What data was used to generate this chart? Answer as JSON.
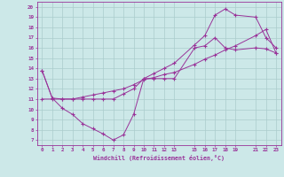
{
  "xlabel": "Windchill (Refroidissement éolien,°C)",
  "bg_color": "#cce8e8",
  "grid_color": "#aacccc",
  "line_color": "#993399",
  "xlim": [
    -0.5,
    23.5
  ],
  "ylim": [
    6.5,
    20.5
  ],
  "xticks": [
    0,
    1,
    2,
    3,
    4,
    5,
    6,
    7,
    8,
    9,
    10,
    11,
    12,
    13,
    15,
    16,
    17,
    18,
    19,
    21,
    22,
    23
  ],
  "yticks": [
    7,
    8,
    9,
    10,
    11,
    12,
    13,
    14,
    15,
    16,
    17,
    18,
    19,
    20
  ],
  "line1_x": [
    0,
    1,
    2,
    3,
    4,
    5,
    6,
    7,
    8,
    9,
    10,
    11,
    12,
    13,
    15,
    16,
    17,
    18,
    19,
    21,
    22,
    23
  ],
  "line1_y": [
    13.8,
    11.1,
    10.1,
    9.5,
    8.6,
    8.1,
    7.6,
    7.0,
    7.5,
    9.5,
    13.0,
    13.0,
    13.0,
    13.0,
    16.0,
    16.2,
    17.0,
    16.0,
    15.8,
    16.0,
    15.9,
    15.5
  ],
  "line2_x": [
    0,
    1,
    2,
    3,
    4,
    5,
    6,
    7,
    8,
    9,
    10,
    11,
    12,
    13,
    15,
    16,
    17,
    18,
    19,
    21,
    22,
    23
  ],
  "line2_y": [
    13.8,
    11.1,
    11.0,
    11.0,
    11.0,
    11.0,
    11.0,
    11.0,
    11.5,
    12.0,
    13.0,
    13.5,
    14.0,
    14.5,
    16.3,
    17.2,
    19.2,
    19.8,
    19.2,
    19.0,
    17.0,
    16.0
  ],
  "line3_x": [
    0,
    1,
    2,
    3,
    4,
    5,
    6,
    7,
    8,
    9,
    10,
    11,
    12,
    13,
    15,
    16,
    17,
    18,
    19,
    21,
    22,
    23
  ],
  "line3_y": [
    11.0,
    11.0,
    11.0,
    11.0,
    11.2,
    11.4,
    11.6,
    11.8,
    12.0,
    12.4,
    12.9,
    13.1,
    13.4,
    13.6,
    14.4,
    14.9,
    15.3,
    15.8,
    16.2,
    17.2,
    17.8,
    15.5
  ],
  "marker": "+"
}
